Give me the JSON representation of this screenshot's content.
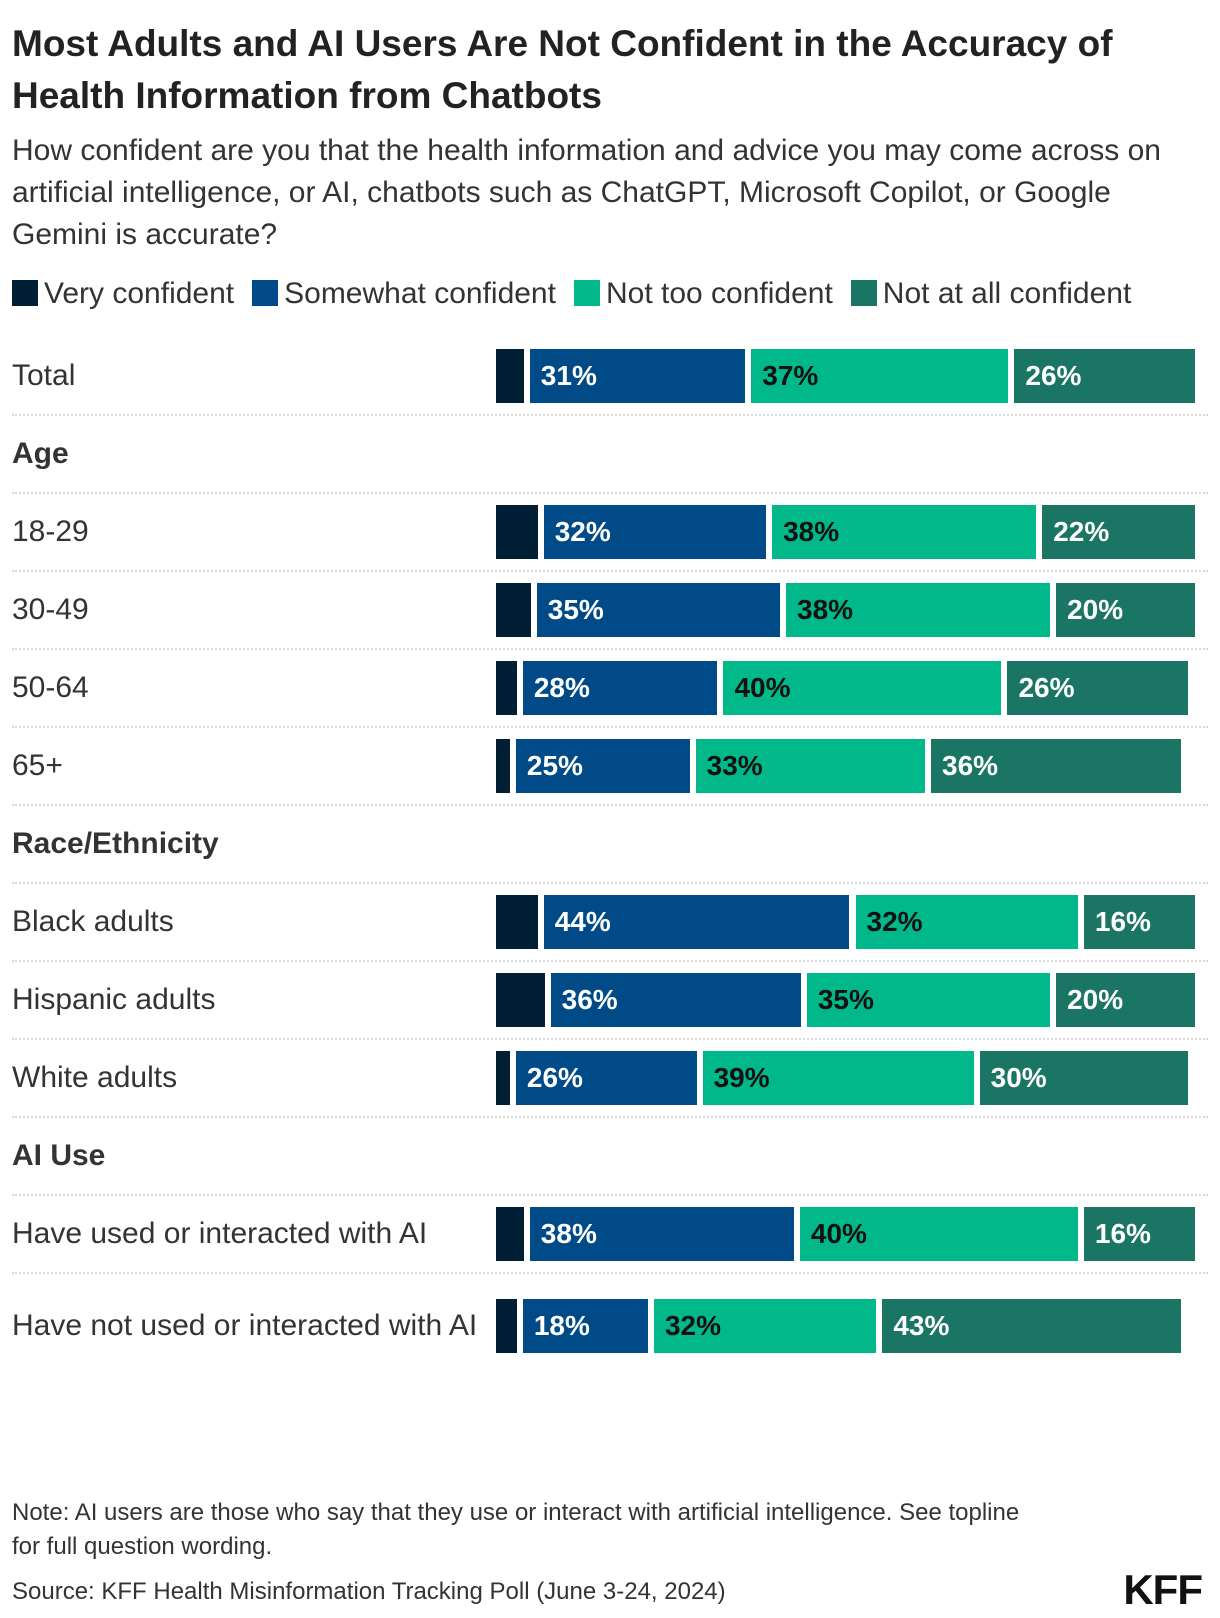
{
  "title": "Most Adults and AI Users Are Not Confident in the Accuracy of Health Information from Chatbots",
  "subtitle": "How confident are you that the health information and advice you may come across on artificial intelligence, or AI, chatbots such as ChatGPT, Microsoft Copilot, or Google Gemini is accurate?",
  "note": "Note: AI users are those who say that they use or interact with artificial intelligence. See topline for full question wording.",
  "source": "Source: KFF Health Misinformation Tracking Poll (June 3-24, 2024)",
  "logo": "KFF",
  "chart_data": {
    "type": "bar",
    "orientation": "horizontal",
    "stacked": true,
    "legend_position": "top",
    "xlim": [
      0,
      100
    ],
    "series": [
      {
        "name": "Very confident",
        "color": "#001f35",
        "labeled": false
      },
      {
        "name": "Somewhat confident",
        "color": "#004b87",
        "labeled": true
      },
      {
        "name": "Not too confident",
        "color": "#00b88a",
        "labeled": true
      },
      {
        "name": "Not at all confident",
        "color": "#1b7564",
        "labeled": true
      }
    ],
    "rows": [
      {
        "label": "Total",
        "values": [
          4,
          31,
          37,
          26
        ]
      },
      {
        "label": "Age",
        "header": true
      },
      {
        "label": "18-29",
        "values": [
          6,
          32,
          38,
          22
        ]
      },
      {
        "label": "30-49",
        "values": [
          5,
          35,
          38,
          20
        ]
      },
      {
        "label": "50-64",
        "values": [
          3,
          28,
          40,
          26
        ]
      },
      {
        "label": "65+",
        "values": [
          2,
          25,
          33,
          36
        ]
      },
      {
        "label": "Race/Ethnicity",
        "header": true
      },
      {
        "label": "Black adults",
        "values": [
          6,
          44,
          32,
          16
        ]
      },
      {
        "label": "Hispanic adults",
        "values": [
          7,
          36,
          35,
          20
        ]
      },
      {
        "label": "White adults",
        "values": [
          2,
          26,
          39,
          30
        ]
      },
      {
        "label": "AI Use",
        "header": true
      },
      {
        "label": "Have used or interacted with AI",
        "values": [
          4,
          38,
          40,
          16
        ]
      },
      {
        "label": "Have not used or interacted with AI",
        "values": [
          3,
          18,
          32,
          43
        ],
        "wrap": true
      }
    ]
  }
}
